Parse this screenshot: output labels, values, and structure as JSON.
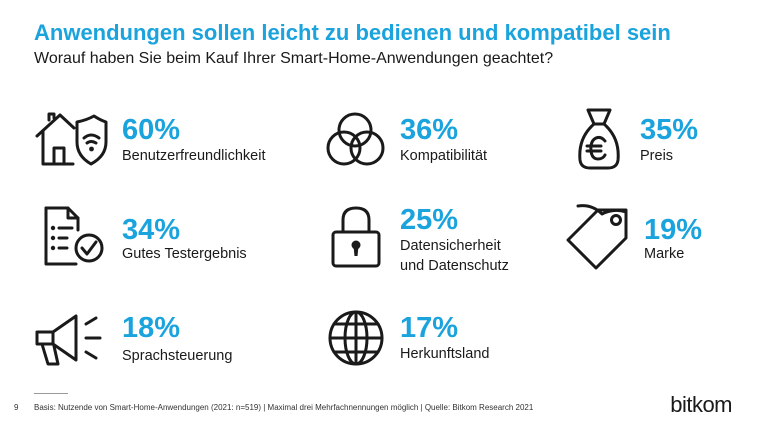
{
  "header": {
    "title": "Anwendungen sollen leicht zu bedienen und kompatibel sein",
    "subtitle": "Worauf haben Sie beim Kauf Ihrer Smart-Home-Anwendungen geachtet?"
  },
  "chart_data": {
    "type": "table",
    "title": "Anwendungen sollen leicht zu bedienen und kompatibel sein",
    "subtitle": "Worauf haben Sie beim Kauf Ihrer Smart-Home-Anwendungen geachtet?",
    "categories": [
      "Benutzerfreundlichkeit",
      "Kompatibilität",
      "Preis",
      "Gutes Testergebnis",
      "Datensicherheit und Datenschutz",
      "Marke",
      "Sprachsteuerung",
      "Herkunftsland"
    ],
    "values": [
      60,
      36,
      35,
      34,
      25,
      19,
      18,
      17
    ],
    "unit": "%"
  },
  "stats": [
    {
      "value": "60%",
      "label": "Benutzerfreundlichkeit",
      "icon": "smart-home-shield-icon"
    },
    {
      "value": "36%",
      "label": "Kompatibilität",
      "icon": "overlapping-circles-icon"
    },
    {
      "value": "35%",
      "label": "Preis",
      "icon": "euro-money-bag-icon"
    },
    {
      "value": "34%",
      "label": "Gutes Testergebnis",
      "icon": "checklist-document-icon"
    },
    {
      "value": "25%",
      "label": "Datensicherheit",
      "label2": "und Datenschutz",
      "icon": "padlock-icon"
    },
    {
      "value": "19%",
      "label": "Marke",
      "icon": "price-tag-icon"
    },
    {
      "value": "18%",
      "label": "Sprachsteuerung",
      "icon": "megaphone-icon"
    },
    {
      "value": "17%",
      "label": "Herkunftsland",
      "icon": "globe-icon"
    }
  ],
  "footer": {
    "page_number": "9",
    "source": "Basis: Nutzende von Smart-Home-Anwendungen (2021: n=519) | Maximal drei Mehrfachnennungen möglich | Quelle: Bitkom Research 2021",
    "logo_text": "bitkom"
  },
  "colors": {
    "accent": "#1aa3dd",
    "text": "#1a1a1a"
  }
}
